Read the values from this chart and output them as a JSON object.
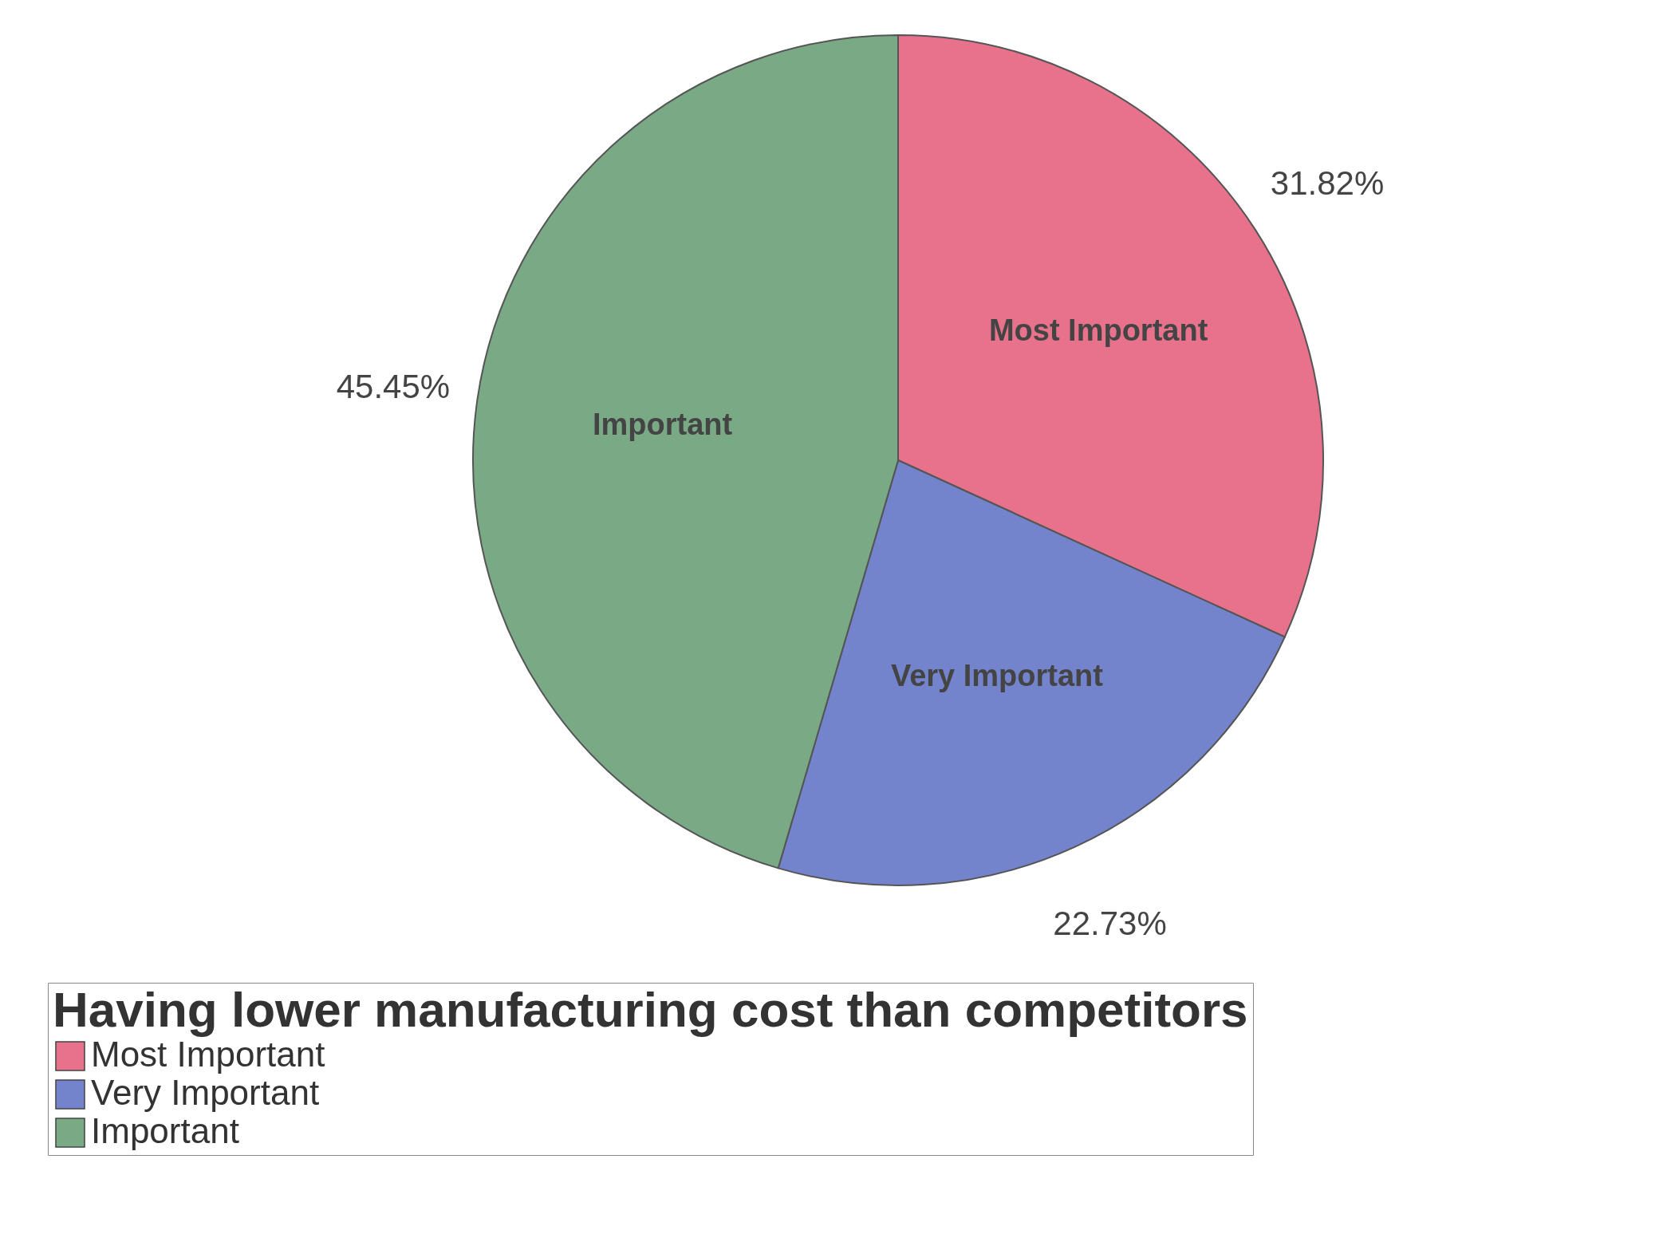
{
  "chart_data": {
    "type": "pie",
    "legend_title": "Having lower manufacturing cost than competitors",
    "categories": [
      "Most Important",
      "Very Important",
      "Important"
    ],
    "values": [
      31.82,
      22.73,
      45.45
    ],
    "value_labels": [
      "31.82%",
      "22.73%",
      "45.45%"
    ],
    "colors": [
      "#e8728c",
      "#7484cc",
      "#79a985"
    ],
    "legend": "bottom left"
  }
}
